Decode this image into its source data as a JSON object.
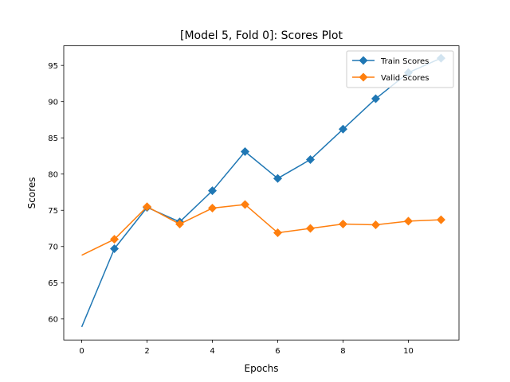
{
  "chart_data": {
    "type": "line",
    "title": "[Model 5, Fold 0]: Scores Plot",
    "xlabel": "Epochs",
    "ylabel": "Scores",
    "xlim": [
      -0.55,
      11.55
    ],
    "ylim": [
      57.1,
      97.7
    ],
    "xticks": [
      0,
      2,
      4,
      6,
      8,
      10
    ],
    "yticks": [
      60,
      65,
      70,
      75,
      80,
      85,
      90,
      95
    ],
    "grid": false,
    "legend_position": "upper right",
    "series": [
      {
        "name": "Train Scores",
        "color": "#1f77b4",
        "marker": "diamond",
        "marker_from_index": 1,
        "x": [
          0,
          1,
          2,
          3,
          4,
          5,
          6,
          7,
          8,
          9,
          10,
          11
        ],
        "y": [
          58.9,
          69.7,
          75.4,
          73.4,
          77.7,
          83.1,
          79.4,
          82.0,
          86.2,
          90.4,
          94.0,
          96.0
        ]
      },
      {
        "name": "Valid Scores",
        "color": "#ff7f0e",
        "marker": "diamond",
        "marker_from_index": 1,
        "x": [
          0,
          1,
          2,
          3,
          4,
          5,
          6,
          7,
          8,
          9,
          10,
          11
        ],
        "y": [
          68.8,
          71.0,
          75.5,
          73.1,
          75.3,
          75.8,
          71.9,
          72.5,
          73.1,
          73.0,
          73.5,
          73.7
        ]
      }
    ]
  }
}
